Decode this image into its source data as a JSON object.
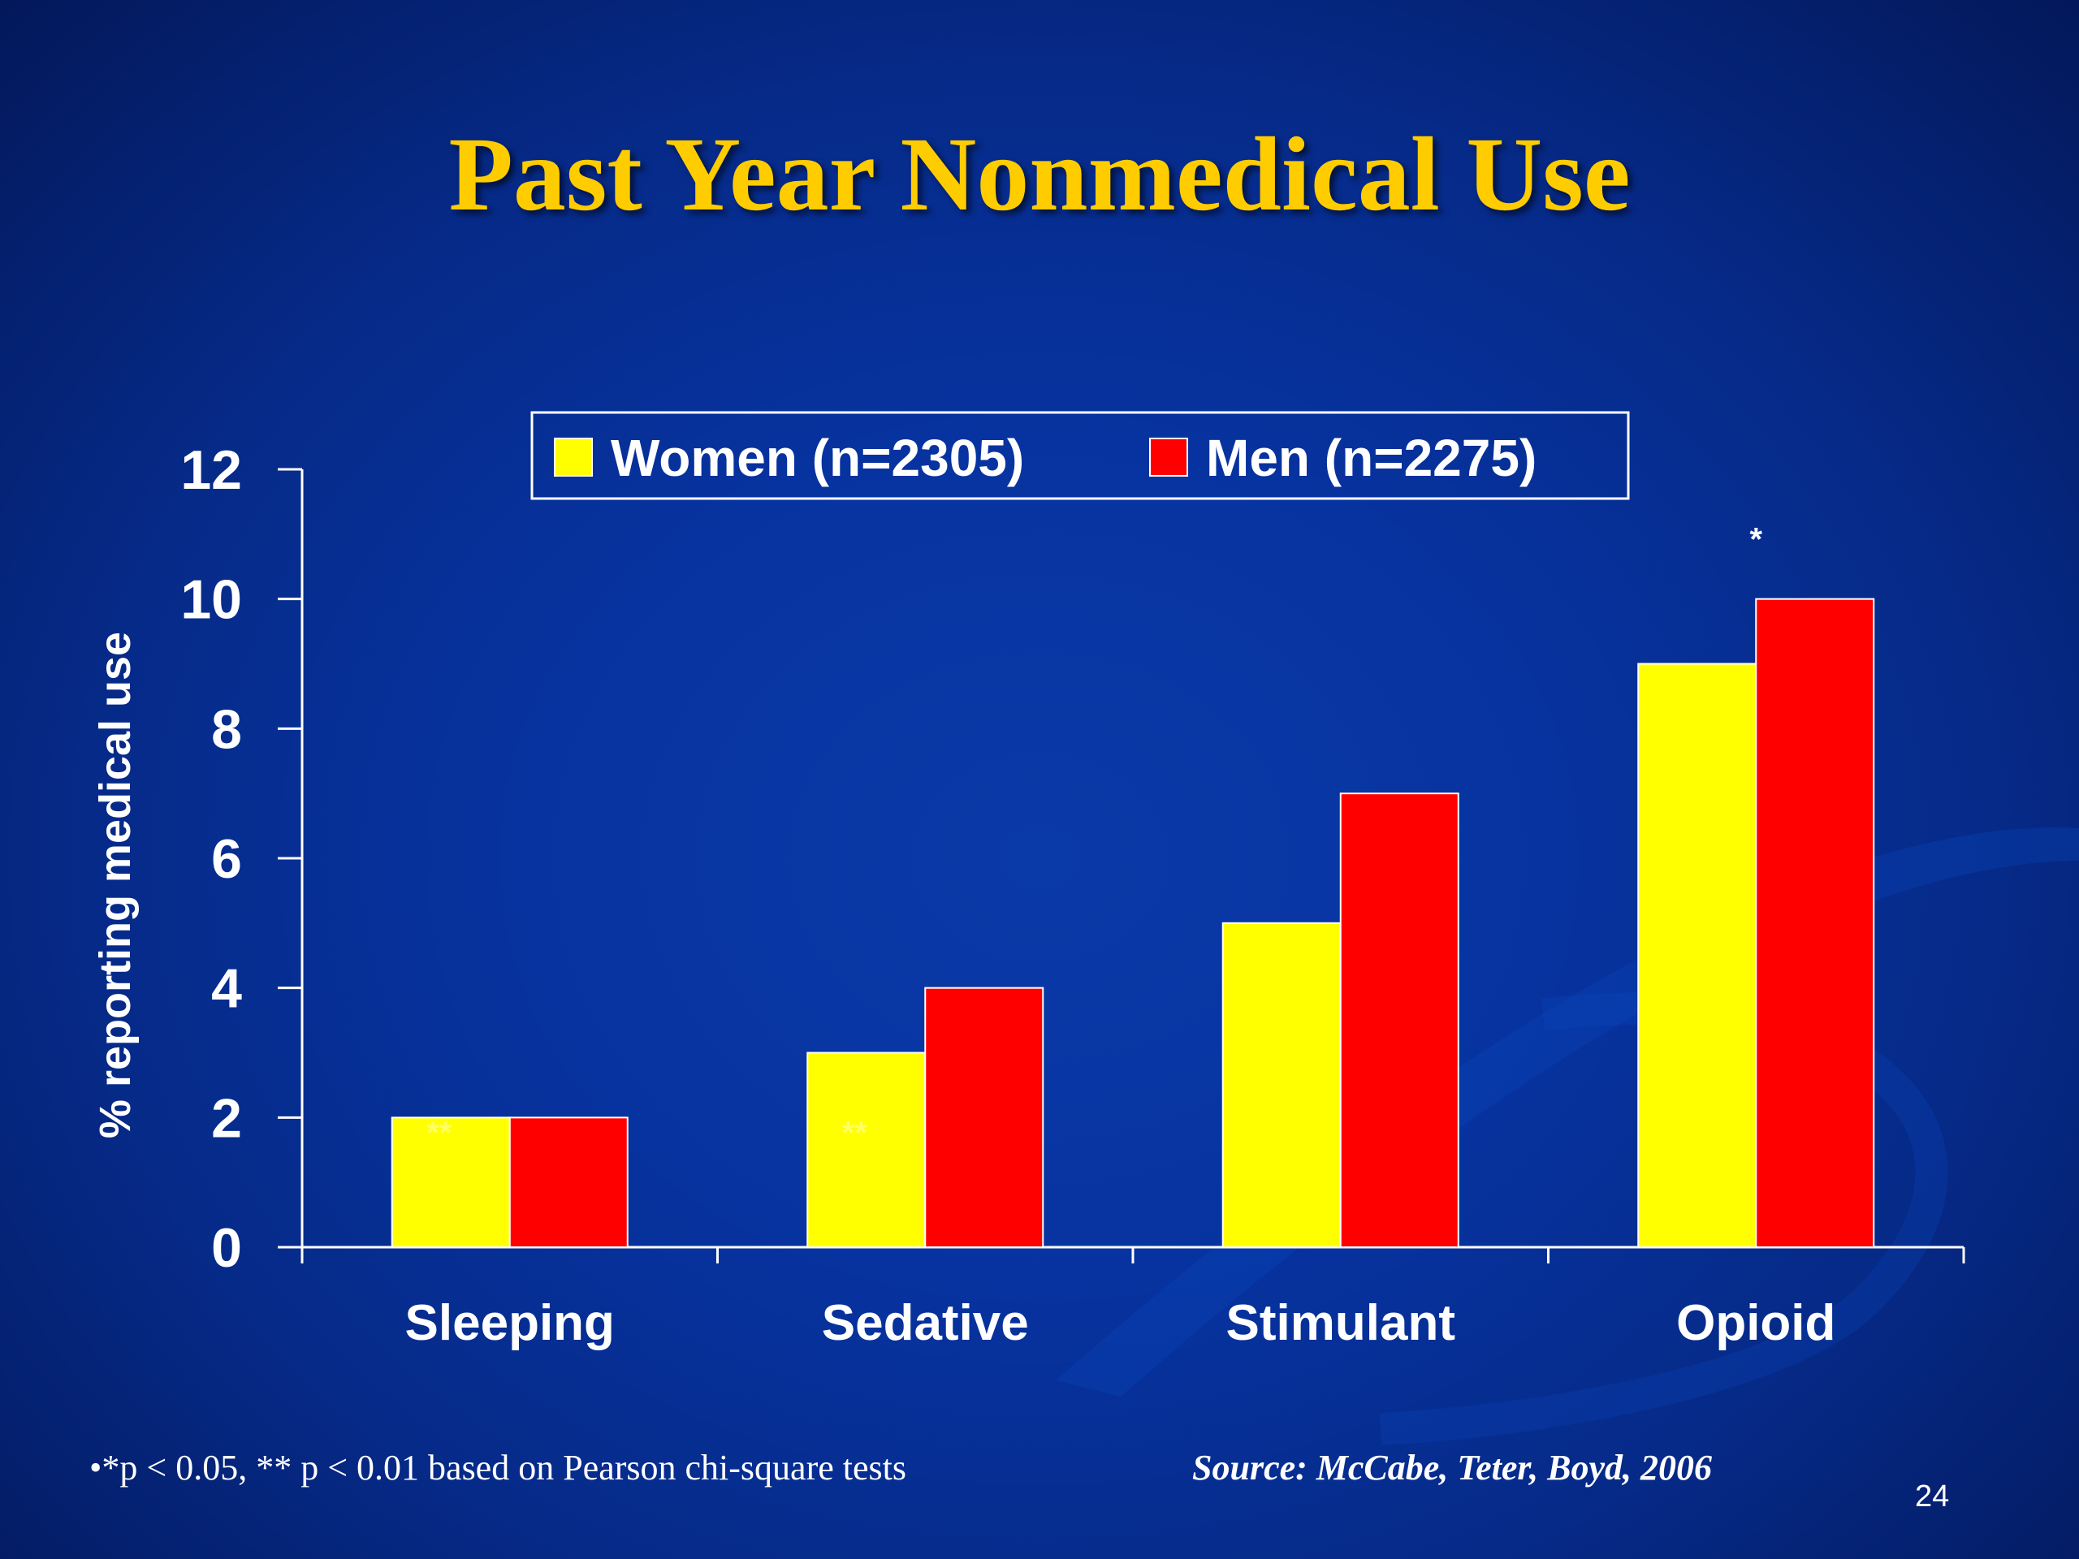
{
  "slide": {
    "title": "Past Year Nonmedical Use",
    "footnote": "•*p < 0.05, ** p < 0.01 based on Pearson chi-square tests",
    "source": "Source: McCabe, Teter, Boyd, 2006",
    "page_number": "24"
  },
  "chart_data": {
    "type": "bar",
    "title": "",
    "xlabel": "",
    "ylabel": "% reporting medical use",
    "categories": [
      "Sleeping",
      "Sedative",
      "Stimulant",
      "Opioid"
    ],
    "series": [
      {
        "name": "Women (n=2305)",
        "color": "#ffff00",
        "values": [
          2,
          3,
          5,
          9
        ]
      },
      {
        "name": "Men (n=2275)",
        "color": "#ff0000",
        "values": [
          2,
          4,
          7,
          10
        ]
      }
    ],
    "ylim": [
      0,
      12
    ],
    "yticks": [
      0,
      2,
      4,
      6,
      8,
      10,
      12
    ],
    "legend_position": "top-center",
    "grid": false,
    "annotations": [
      {
        "category": "Sleeping",
        "text": "**"
      },
      {
        "category": "Sedative",
        "text": "**"
      },
      {
        "category": "Opioid",
        "text": "*"
      }
    ]
  }
}
